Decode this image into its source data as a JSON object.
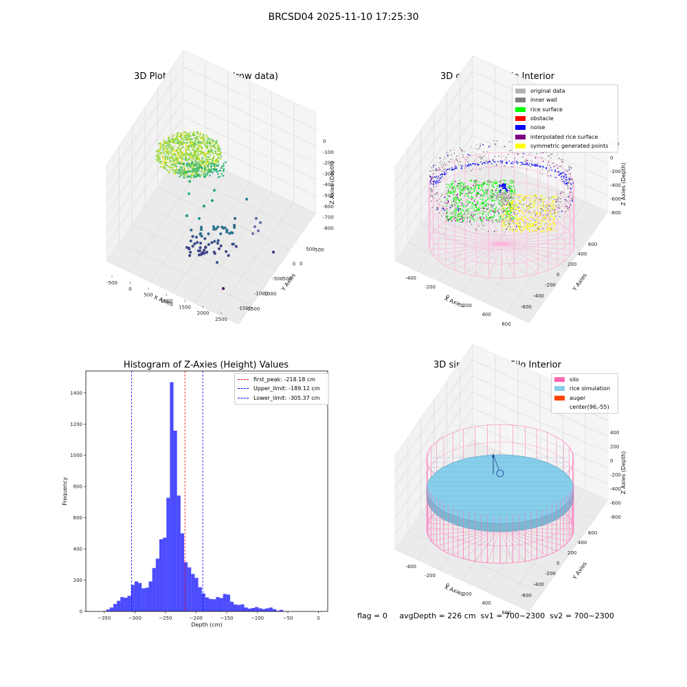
{
  "figure": {
    "title": "BRCSD04 2025-11-10 17:25:30",
    "footer": "flag = 0     avgDepth = 226 cm  sv1 = 700~2300  sv2 = 700~2300"
  },
  "panels": {
    "raw": {
      "title": "3D Plot of Silo Interior(row data)",
      "xlabel": "X Axies",
      "ylabel": "Y Axies",
      "zlabel": "Z Axies (Depth)",
      "xticks": [
        "-500",
        "0",
        "500",
        "1000",
        "1500",
        "2000",
        "2500"
      ],
      "yticks": [
        "500",
        "0",
        "-500",
        "-1000",
        "-1500"
      ],
      "zticks": [
        "0",
        "-100",
        "-200",
        "-300",
        "-400",
        "-500",
        "-600",
        "-700",
        "-800"
      ]
    },
    "classify": {
      "title": "3D classify of Silo Interior",
      "xlabel": "X Axies",
      "ylabel": "Y Axies",
      "zlabel": "Z Axies (Depth)",
      "xticks": [
        "-400",
        "-200",
        "0",
        "200",
        "400",
        "600"
      ],
      "yticks": [
        "600",
        "400",
        "200",
        "0",
        "-200",
        "-400",
        "-600"
      ],
      "zticks": [
        "200",
        "0",
        "-200",
        "-400",
        "-600",
        "-800"
      ],
      "legend": [
        {
          "label": "original data",
          "color": "#b3b3b3"
        },
        {
          "label": "inner wall",
          "color": "#808080"
        },
        {
          "label": "rice surface",
          "color": "#00ff00"
        },
        {
          "label": "obstacle",
          "color": "#ff0000"
        },
        {
          "label": "noise",
          "color": "#0000ff"
        },
        {
          "label": "interpolated rice surface",
          "color": "#800080"
        },
        {
          "label": "symmetric generated points",
          "color": "#ffff00"
        }
      ]
    },
    "simulation": {
      "title": "3D simulation of Silo Interior",
      "xlabel": "X Axies",
      "ylabel": "Y Axies",
      "zlabel": "Z Axies (Depth)",
      "xticks": [
        "-400",
        "-200",
        "0",
        "200",
        "400",
        "600"
      ],
      "yticks": [
        "600",
        "400",
        "200",
        "0",
        "-200",
        "-400",
        "-600"
      ],
      "zticks": [
        "400",
        "200",
        "0",
        "-200",
        "-400",
        "-600",
        "-800"
      ],
      "legend": [
        {
          "label": "silo",
          "color": "#ff69b4"
        },
        {
          "label": "rice simulation",
          "color": "#87ceeb"
        },
        {
          "label": "auger",
          "color": "#ff4500"
        },
        {
          "label": "center(96,-55)",
          "color": ""
        }
      ]
    }
  },
  "chart_data": [
    {
      "type": "bar",
      "title": "Histogram of Z-Axies (Height) Values",
      "xlabel": "Depth (cm)",
      "ylabel": "Frequency",
      "xlim": [
        -380,
        15
      ],
      "ylim": [
        0,
        1540
      ],
      "xticks": [
        -350,
        -300,
        -250,
        -200,
        -150,
        -100,
        -50,
        0
      ],
      "yticks": [
        0,
        200,
        400,
        600,
        800,
        1000,
        1200,
        1400
      ],
      "bar_color": "#0000ff",
      "bin_width": 5.78,
      "bin_start": -352.5,
      "values": [
        2,
        12,
        25,
        48,
        68,
        92,
        88,
        100,
        170,
        192,
        182,
        148,
        152,
        192,
        278,
        338,
        462,
        472,
        728,
        1468,
        1158,
        742,
        500,
        315,
        282,
        240,
        215,
        155,
        115,
        90,
        80,
        78,
        92,
        86,
        112,
        108,
        62,
        45,
        42,
        45,
        25,
        18,
        22,
        28,
        20,
        15,
        20,
        25,
        15,
        5,
        10,
        2
      ],
      "vlines": [
        {
          "label": "first_peak: -218.18 cm",
          "x": -218.18,
          "color": "#ff0000"
        },
        {
          "label": "Upper_limit: -189.12 cm",
          "x": -189.12,
          "color": "#0000ff"
        },
        {
          "label": "Lower_limit: -305.37 cm",
          "x": -305.37,
          "color": "#0000ff"
        }
      ]
    }
  ]
}
